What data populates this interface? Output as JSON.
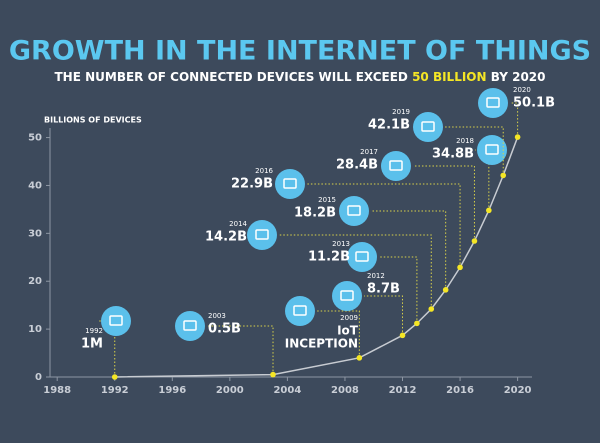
{
  "chart_data": {
    "type": "line",
    "title": "GROWTH IN THE INTERNET OF THINGS",
    "subtitle": [
      "THE NUMBER OF CONNECTED DEVICES WILL EXCEED ",
      "50 BILLION",
      " BY 2020"
    ],
    "y_label": "BILLIONS OF DEVICES",
    "x": [
      1992,
      2003,
      2009,
      2012,
      2013,
      2014,
      2015,
      2016,
      2017,
      2018,
      2019,
      2020
    ],
    "series": [
      {
        "name": "Connected devices",
        "color": "#f5e625",
        "line_color": "#c8ccd2",
        "values": [
          0.001,
          0.5,
          4,
          8.7,
          11.2,
          14.2,
          18.2,
          22.9,
          28.4,
          34.8,
          42.1,
          50.1
        ],
        "value_labels": [
          "1M",
          "0.5B",
          null,
          "8.7B",
          "11.2B",
          "14.2B",
          "18.2B",
          "22.9B",
          "28.4B",
          "34.8B",
          "42.1B",
          "50.1B"
        ]
      }
    ],
    "annotation": [
      "IoT",
      "INCEPTION"
    ],
    "xlim": [
      1987.5,
      2021
    ],
    "xticks": [
      1988,
      1992,
      1996,
      2000,
      2004,
      2008,
      2012,
      2016,
      2020
    ],
    "ylim": [
      0,
      52
    ],
    "yticks": [
      0,
      10,
      20,
      30,
      40,
      50
    ]
  }
}
